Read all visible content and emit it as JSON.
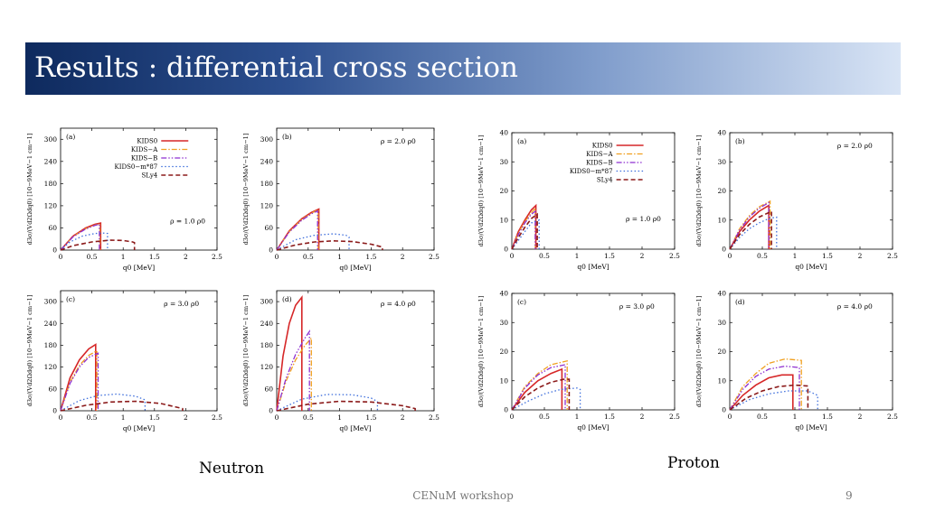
{
  "slide": {
    "title": "Results : differential cross section",
    "neutron_label": "Neutron",
    "proton_label": "Proton",
    "footer": "CENuM workshop",
    "page_number": "9"
  },
  "colors": {
    "KIDS0": "#d62728",
    "KIDS-A": "#f0a020",
    "KIDS-B": "#8e2fd0",
    "KIDS0-m*87": "#3f6fdc",
    "SLy4": "#8b1a1a"
  },
  "chart_data": [
    {
      "type": "line",
      "group": "neutron",
      "panel": "(a)",
      "annotation": "ρ = 1.0 ρ0",
      "xlabel": "q0 [MeV]",
      "ylabel": "d3σ/(Vd2Ωdq0) [10−9MeV−1 cm−1]",
      "xlim": [
        0,
        2.5
      ],
      "ylim": [
        0,
        330
      ],
      "xticks": [
        "0",
        "0.5",
        "1",
        "1.5",
        "2",
        "2.5"
      ],
      "yticks": [
        "0",
        "60",
        "120",
        "180",
        "240",
        "300"
      ],
      "legend": [
        "KIDS0",
        "KIDS−A",
        "KIDS−B",
        "KIDS0−m*87",
        "SLy4"
      ],
      "series": [
        {
          "name": "KIDS0",
          "x": [
            0,
            0.2,
            0.4,
            0.55,
            0.64,
            0.64
          ],
          "y": [
            0,
            38,
            60,
            70,
            73,
            0
          ]
        },
        {
          "name": "KIDS−A",
          "x": [
            0,
            0.2,
            0.4,
            0.55,
            0.63,
            0.63
          ],
          "y": [
            0,
            37,
            58,
            68,
            71,
            0
          ]
        },
        {
          "name": "KIDS−B",
          "x": [
            0,
            0.2,
            0.4,
            0.55,
            0.62,
            0.62
          ],
          "y": [
            0,
            36,
            57,
            67,
            70,
            0
          ]
        },
        {
          "name": "KIDS0−m*87",
          "x": [
            0,
            0.15,
            0.35,
            0.55,
            0.7,
            0.75,
            0.75
          ],
          "y": [
            0,
            22,
            38,
            45,
            46,
            45,
            0
          ]
        },
        {
          "name": "SLy4",
          "x": [
            0,
            0.2,
            0.5,
            0.8,
            1.0,
            1.15,
            1.18,
            1.18
          ],
          "y": [
            0,
            12,
            22,
            27,
            26,
            22,
            20,
            0
          ]
        }
      ]
    },
    {
      "type": "line",
      "group": "neutron",
      "panel": "(b)",
      "annotation": "ρ = 2.0 ρ0",
      "xlabel": "q0 [MeV]",
      "ylabel": "d3σ/(Vd2Ωdq0) [10−9MeV−1 cm−1]",
      "xlim": [
        0,
        2.5
      ],
      "ylim": [
        0,
        330
      ],
      "xticks": [
        "0",
        "0.5",
        "1",
        "1.5",
        "2",
        "2.5"
      ],
      "yticks": [
        "0",
        "60",
        "120",
        "180",
        "240",
        "300"
      ],
      "series": [
        {
          "name": "KIDS0",
          "x": [
            0,
            0.2,
            0.4,
            0.55,
            0.67,
            0.67
          ],
          "y": [
            0,
            52,
            85,
            102,
            111,
            0
          ]
        },
        {
          "name": "KIDS−A",
          "x": [
            0,
            0.2,
            0.4,
            0.55,
            0.66,
            0.66
          ],
          "y": [
            0,
            50,
            83,
            100,
            109,
            0
          ]
        },
        {
          "name": "KIDS−B",
          "x": [
            0,
            0.2,
            0.4,
            0.55,
            0.65,
            0.65
          ],
          "y": [
            0,
            49,
            81,
            98,
            106,
            0
          ]
        },
        {
          "name": "KIDS0−m*87",
          "x": [
            0,
            0.3,
            0.6,
            0.9,
            1.1,
            1.15,
            1.15
          ],
          "y": [
            0,
            28,
            40,
            44,
            40,
            35,
            0
          ]
        },
        {
          "name": "SLy4",
          "x": [
            0,
            0.3,
            0.6,
            0.9,
            1.2,
            1.5,
            1.68,
            1.68
          ],
          "y": [
            0,
            14,
            22,
            25,
            23,
            16,
            8,
            0
          ]
        }
      ]
    },
    {
      "type": "line",
      "group": "neutron",
      "panel": "(c)",
      "annotation": "ρ = 3.0 ρ0",
      "xlabel": "q0 [MeV]",
      "ylabel": "d3σ/(Vd2Ωdq0) [10−9MeV−1 cm−1]",
      "xlim": [
        0,
        2.5
      ],
      "ylim": [
        0,
        330
      ],
      "xticks": [
        "0",
        "0.5",
        "1",
        "1.5",
        "2",
        "2.5"
      ],
      "yticks": [
        "0",
        "60",
        "120",
        "180",
        "240",
        "300"
      ],
      "series": [
        {
          "name": "KIDS0",
          "x": [
            0,
            0.15,
            0.3,
            0.45,
            0.56,
            0.56
          ],
          "y": [
            0,
            90,
            140,
            170,
            182,
            0
          ]
        },
        {
          "name": "KIDS−A",
          "x": [
            0,
            0.15,
            0.3,
            0.45,
            0.58,
            0.58
          ],
          "y": [
            0,
            78,
            125,
            152,
            165,
            0
          ]
        },
        {
          "name": "KIDS−B",
          "x": [
            0,
            0.15,
            0.3,
            0.45,
            0.6,
            0.6
          ],
          "y": [
            0,
            75,
            120,
            147,
            158,
            0
          ]
        },
        {
          "name": "KIDS0−m*87",
          "x": [
            0,
            0.3,
            0.6,
            0.9,
            1.2,
            1.35,
            1.35
          ],
          "y": [
            0,
            28,
            42,
            46,
            40,
            30,
            0
          ]
        },
        {
          "name": "SLy4",
          "x": [
            0,
            0.4,
            0.8,
            1.2,
            1.6,
            1.95,
            1.95
          ],
          "y": [
            0,
            15,
            24,
            26,
            20,
            6,
            0
          ]
        }
      ]
    },
    {
      "type": "line",
      "group": "neutron",
      "panel": "(d)",
      "annotation": "ρ = 4.0 ρ0",
      "xlabel": "q0 [MeV]",
      "ylabel": "d3σ/(Vd2Ωdq0) [10−9MeV−1 cm−1]",
      "xlim": [
        0,
        2.5
      ],
      "ylim": [
        0,
        330
      ],
      "xticks": [
        "0",
        "0.5",
        "1",
        "1.5",
        "2",
        "2.5"
      ],
      "yticks": [
        "0",
        "60",
        "120",
        "180",
        "240",
        "300"
      ],
      "series": [
        {
          "name": "KIDS0",
          "x": [
            0,
            0.1,
            0.2,
            0.3,
            0.4,
            0.4
          ],
          "y": [
            0,
            150,
            240,
            290,
            312,
            0
          ]
        },
        {
          "name": "KIDS−A",
          "x": [
            0,
            0.15,
            0.3,
            0.45,
            0.55,
            0.55
          ],
          "y": [
            0,
            82,
            140,
            180,
            200,
            0
          ]
        },
        {
          "name": "KIDS−B",
          "x": [
            0,
            0.15,
            0.3,
            0.45,
            0.52,
            0.52
          ],
          "y": [
            0,
            90,
            155,
            200,
            218,
            0
          ]
        },
        {
          "name": "KIDS0−m*87",
          "x": [
            0,
            0.4,
            0.8,
            1.2,
            1.5,
            1.6,
            1.6
          ],
          "y": [
            0,
            32,
            45,
            44,
            35,
            25,
            0
          ]
        },
        {
          "name": "SLy4",
          "x": [
            0,
            0.5,
            1.0,
            1.5,
            2.0,
            2.2,
            2.2
          ],
          "y": [
            0,
            18,
            26,
            24,
            14,
            6,
            0
          ]
        }
      ]
    },
    {
      "type": "line",
      "group": "proton",
      "panel": "(a)",
      "annotation": "ρ = 1.0 ρ0",
      "xlabel": "q0 [MeV]",
      "ylabel": "d3σ/(Vd2Ωdq0) [10−9MeV−1 cm−1]",
      "xlim": [
        0,
        2.5
      ],
      "ylim": [
        0,
        40
      ],
      "xticks": [
        "0",
        "0.5",
        "1",
        "1.5",
        "2",
        "2.5"
      ],
      "yticks": [
        "0",
        "10",
        "20",
        "30",
        "40"
      ],
      "legend": [
        "KIDS0",
        "KIDS−A",
        "KIDS−B",
        "KIDS0−m*87",
        "SLy4"
      ],
      "series": [
        {
          "name": "KIDS0",
          "x": [
            0,
            0.1,
            0.2,
            0.3,
            0.37,
            0.37
          ],
          "y": [
            0,
            6,
            10,
            13.5,
            15,
            0
          ]
        },
        {
          "name": "KIDS−A",
          "x": [
            0,
            0.1,
            0.2,
            0.3,
            0.36,
            0.36
          ],
          "y": [
            0,
            5.5,
            9.5,
            12.5,
            14,
            0
          ]
        },
        {
          "name": "KIDS−B",
          "x": [
            0,
            0.1,
            0.2,
            0.3,
            0.36,
            0.36
          ],
          "y": [
            0,
            5,
            9,
            12,
            13,
            0
          ]
        },
        {
          "name": "KIDS0−m*87",
          "x": [
            0,
            0.1,
            0.2,
            0.3,
            0.42,
            0.42
          ],
          "y": [
            0,
            3,
            6,
            9,
            10,
            0
          ]
        },
        {
          "name": "SLy4",
          "x": [
            0,
            0.1,
            0.2,
            0.3,
            0.39,
            0.39
          ],
          "y": [
            0,
            4,
            7.5,
            10.5,
            12,
            0
          ]
        }
      ]
    },
    {
      "type": "line",
      "group": "proton",
      "panel": "(b)",
      "annotation": "ρ = 2.0 ρ0",
      "xlabel": "q0 [MeV]",
      "ylabel": "d3σ/(Vd2Ωdq0) [10−9MeV−1 cm−1]",
      "xlim": [
        0,
        2.5
      ],
      "ylim": [
        0,
        40
      ],
      "xticks": [
        "0",
        "0.5",
        "1",
        "1.5",
        "2",
        "2.5"
      ],
      "yticks": [
        "0",
        "10",
        "20",
        "30",
        "40"
      ],
      "series": [
        {
          "name": "KIDS0",
          "x": [
            0,
            0.15,
            0.3,
            0.45,
            0.6,
            0.6
          ],
          "y": [
            0,
            6,
            10,
            13,
            15,
            0
          ]
        },
        {
          "name": "KIDS−A",
          "x": [
            0,
            0.15,
            0.3,
            0.45,
            0.62,
            0.62
          ],
          "y": [
            0,
            7,
            11.5,
            14.5,
            16.5,
            0
          ]
        },
        {
          "name": "KIDS−B",
          "x": [
            0,
            0.15,
            0.3,
            0.45,
            0.6,
            0.6
          ],
          "y": [
            0,
            6.5,
            11,
            14,
            16,
            0
          ]
        },
        {
          "name": "KIDS0−m*87",
          "x": [
            0,
            0.15,
            0.3,
            0.45,
            0.6,
            0.72,
            0.72
          ],
          "y": [
            0,
            4,
            7,
            9,
            10.5,
            11,
            0
          ]
        },
        {
          "name": "SLy4",
          "x": [
            0,
            0.15,
            0.3,
            0.45,
            0.64,
            0.64
          ],
          "y": [
            0,
            5,
            8.5,
            11,
            13,
            0
          ]
        }
      ]
    },
    {
      "type": "line",
      "group": "proton",
      "panel": "(c)",
      "annotation": "ρ = 3.0 ρ0",
      "xlabel": "q0 [MeV]",
      "ylabel": "d3σ/(Vd2Ωdq0) [10−9MeV−1 cm−1]",
      "xlim": [
        0,
        2.5
      ],
      "ylim": [
        0,
        40
      ],
      "xticks": [
        "0",
        "0.5",
        "1",
        "1.5",
        "2",
        "2.5"
      ],
      "yticks": [
        "0",
        "10",
        "20",
        "30",
        "40"
      ],
      "series": [
        {
          "name": "KIDS0",
          "x": [
            0,
            0.2,
            0.4,
            0.6,
            0.77,
            0.77
          ],
          "y": [
            0,
            6,
            10,
            12.5,
            14,
            0
          ]
        },
        {
          "name": "KIDS−A",
          "x": [
            0,
            0.2,
            0.4,
            0.6,
            0.85,
            0.85
          ],
          "y": [
            0,
            8,
            12.5,
            15.5,
            16.8,
            0
          ]
        },
        {
          "name": "KIDS−B",
          "x": [
            0,
            0.2,
            0.4,
            0.6,
            0.82,
            0.82
          ],
          "y": [
            0,
            7.5,
            12,
            14.5,
            15.5,
            0
          ]
        },
        {
          "name": "KIDS0−m*87",
          "x": [
            0,
            0.25,
            0.5,
            0.75,
            1.0,
            1.05,
            1.05
          ],
          "y": [
            0,
            3,
            5.5,
            7,
            7.5,
            7,
            0
          ]
        },
        {
          "name": "SLy4",
          "x": [
            0,
            0.2,
            0.4,
            0.6,
            0.8,
            0.88,
            0.88
          ],
          "y": [
            0,
            4.5,
            7.5,
            9.5,
            10.5,
            10.5,
            0
          ]
        }
      ]
    },
    {
      "type": "line",
      "group": "proton",
      "panel": "(d)",
      "annotation": "ρ = 4.0 ρ0",
      "xlabel": "q0 [MeV]",
      "ylabel": "d3σ/(Vd2Ωdq0) [10−9MeV−1 cm−1]",
      "xlim": [
        0,
        2.5
      ],
      "ylim": [
        0,
        40
      ],
      "xticks": [
        "0",
        "0.5",
        "1",
        "1.5",
        "2",
        "2.5"
      ],
      "yticks": [
        "0",
        "10",
        "20",
        "30",
        "40"
      ],
      "series": [
        {
          "name": "KIDS0",
          "x": [
            0,
            0.2,
            0.4,
            0.6,
            0.8,
            0.97,
            0.97
          ],
          "y": [
            0,
            5,
            8.5,
            11,
            12,
            12,
            0
          ]
        },
        {
          "name": "KIDS−A",
          "x": [
            0,
            0.2,
            0.4,
            0.6,
            0.85,
            1.1,
            1.1
          ],
          "y": [
            0,
            8,
            12.5,
            16,
            17.5,
            17,
            0
          ]
        },
        {
          "name": "KIDS−B",
          "x": [
            0,
            0.2,
            0.4,
            0.6,
            0.85,
            1.07,
            1.07
          ],
          "y": [
            0,
            7,
            11.5,
            14,
            15,
            14.5,
            0
          ]
        },
        {
          "name": "KIDS0−m*87",
          "x": [
            0,
            0.3,
            0.6,
            0.9,
            1.2,
            1.35,
            1.35
          ],
          "y": [
            0,
            3.5,
            5.5,
            6.5,
            6.5,
            5,
            0
          ]
        },
        {
          "name": "SLy4",
          "x": [
            0,
            0.25,
            0.5,
            0.75,
            1.0,
            1.2,
            1.2
          ],
          "y": [
            0,
            4,
            6.5,
            8,
            8.5,
            8.2,
            0
          ]
        }
      ]
    }
  ]
}
